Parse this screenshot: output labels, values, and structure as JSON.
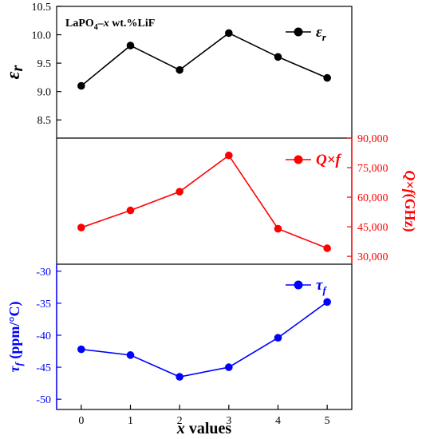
{
  "chart_data": {
    "type": "line",
    "annotation": "LaPO4–x wt.%LiF",
    "x": [
      0,
      1,
      2,
      3,
      4,
      5
    ],
    "xlabel": "x values",
    "x_ticks": [
      "0",
      "1",
      "2",
      "3",
      "4",
      "5"
    ],
    "xlim": [
      -0.5,
      5.5
    ],
    "grid": false,
    "panels": [
      {
        "legend": "εr",
        "ylabel": "εr",
        "color": "#000000",
        "axis_side": "left",
        "ylim": [
          8.18,
          10.5
        ],
        "ticks": [
          "8.5",
          "9.0",
          "9.5",
          "10.0",
          "10.5"
        ],
        "values": [
          9.1,
          9.81,
          9.38,
          10.03,
          9.61,
          9.24
        ]
      },
      {
        "legend": "Q×f",
        "ylabel": "Q×f(GHz)",
        "color": "#ff0000",
        "axis_side": "right",
        "ylim": [
          26000,
          90000
        ],
        "ticks": [
          "30,000",
          "45,000",
          "60,000",
          "75,000",
          "90,000"
        ],
        "values": [
          44600,
          53300,
          62800,
          81200,
          44000,
          34100
        ]
      },
      {
        "legend": "τf",
        "ylabel": "τf (ppm/°C)",
        "color": "#0000ff",
        "axis_side": "left",
        "ylim": [
          -51.6,
          -28.9
        ],
        "ticks": [
          "-50",
          "-45",
          "-40",
          "-35",
          "-30"
        ],
        "values": [
          -42.2,
          -43.1,
          -46.5,
          -45.0,
          -40.4,
          -34.8
        ]
      }
    ]
  }
}
